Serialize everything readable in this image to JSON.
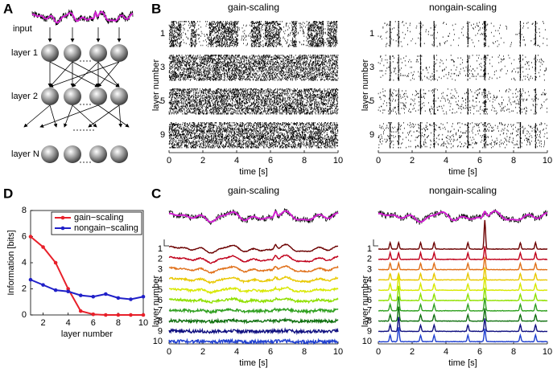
{
  "panel_labels": [
    "A",
    "B",
    "C",
    "D"
  ],
  "diagram": {
    "input": "input",
    "layers": [
      "layer 1",
      "layer 2",
      "layer N"
    ]
  },
  "chart_data": [
    {
      "type": "raster",
      "title": "gain-scaling",
      "xlabel": "time [s]",
      "ylabel": "layer number",
      "categories": [
        "1",
        "3",
        "5",
        "9"
      ],
      "xlim": [
        0,
        10
      ],
      "xticks": [
        0,
        2,
        4,
        6,
        8,
        10
      ]
    },
    {
      "type": "raster",
      "title": "nongain-scaling",
      "xlabel": "time [s]",
      "ylabel": "layer number",
      "categories": [
        "1",
        "3",
        "5",
        "9"
      ],
      "xlim": [
        0,
        10
      ],
      "xticks": [
        0,
        2,
        4,
        6,
        8,
        10
      ]
    },
    {
      "type": "traces",
      "title": "gain-scaling",
      "xlabel": "time [s]",
      "ylabel": "layer number",
      "categories": [
        "1",
        "2",
        "3",
        "4",
        "5",
        "6",
        "7",
        "8",
        "9",
        "10"
      ],
      "colors": [
        "#6b0000",
        "#c0001a",
        "#e0701a",
        "#e8c800",
        "#d8e800",
        "#90e000",
        "#30a020",
        "#107010",
        "#101080",
        "#2040d0",
        "#20b0e8"
      ],
      "xlim": [
        0,
        10
      ],
      "xticks": [
        0,
        2,
        4,
        6,
        8,
        10
      ]
    },
    {
      "type": "traces",
      "title": "nongain-scaling",
      "xlabel": "time [s]",
      "ylabel": "layer number",
      "categories": [
        "1",
        "2",
        "3",
        "4",
        "5",
        "6",
        "7",
        "8",
        "9",
        "10"
      ],
      "colors": [
        "#6b0000",
        "#c0001a",
        "#e0701a",
        "#e8c800",
        "#d8e800",
        "#90e000",
        "#30a020",
        "#107010",
        "#101080",
        "#2040d0",
        "#20b0e8"
      ],
      "xlim": [
        0,
        10
      ],
      "xticks": [
        0,
        2,
        4,
        6,
        8,
        10
      ]
    },
    {
      "type": "line",
      "xlabel": "layer number",
      "ylabel": "Information [bits]",
      "x": [
        1,
        2,
        3,
        4,
        5,
        6,
        7,
        8,
        9,
        10
      ],
      "xlim": [
        1,
        10
      ],
      "xticks": [
        2,
        4,
        6,
        8,
        10
      ],
      "ylim": [
        0,
        8
      ],
      "yticks": [
        0,
        2,
        4,
        6,
        8
      ],
      "legend": "upper right",
      "series": [
        {
          "name": "gain−scaling",
          "color": "#e8202a",
          "values": [
            6.0,
            5.2,
            4.0,
            2.0,
            0.3,
            0.05,
            0.0,
            0.0,
            0.0,
            0.0
          ]
        },
        {
          "name": "nongain−scaling",
          "color": "#2020c8",
          "values": [
            2.7,
            2.3,
            1.9,
            1.8,
            1.5,
            1.4,
            1.6,
            1.3,
            1.2,
            1.4
          ]
        }
      ]
    }
  ]
}
